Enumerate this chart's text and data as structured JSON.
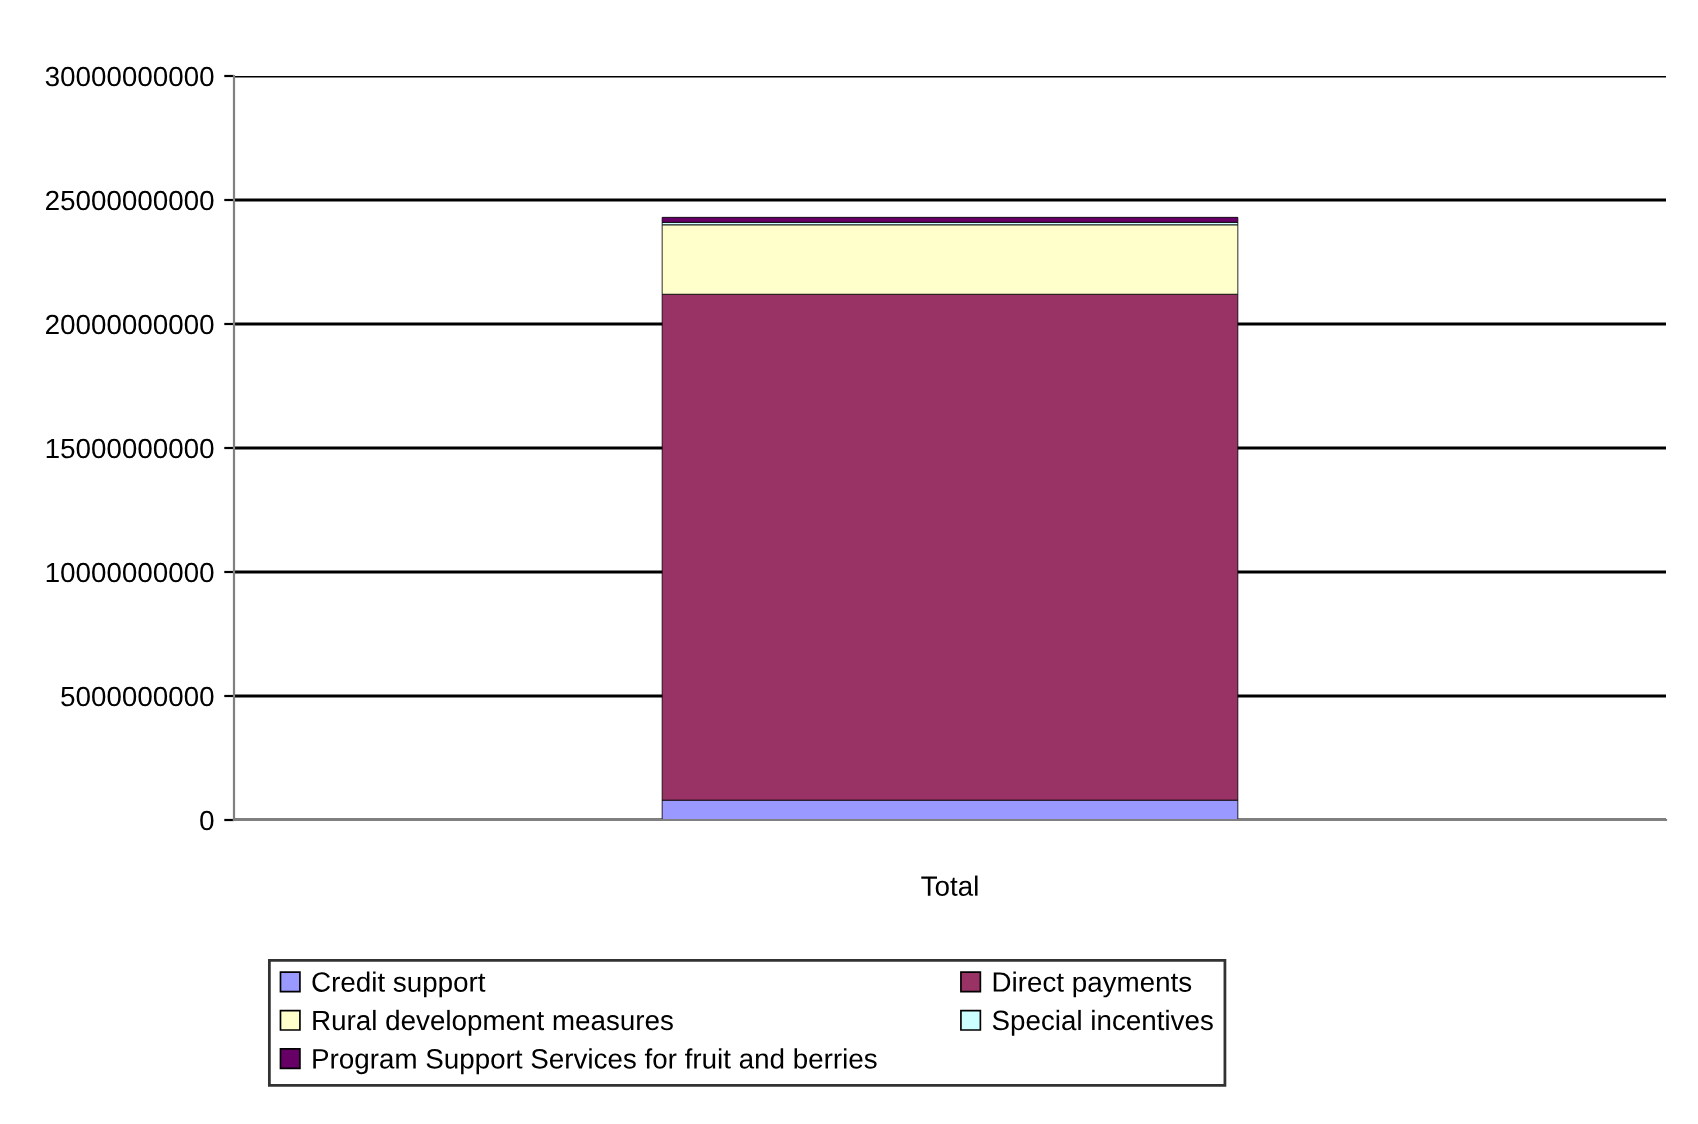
{
  "chart_data": {
    "type": "bar",
    "stacked": true,
    "categories": [
      "Total"
    ],
    "series": [
      {
        "name": "Credit support",
        "color": "#9999ff",
        "values": [
          800000000
        ]
      },
      {
        "name": "Direct payments",
        "color": "#993366",
        "values": [
          20400000000
        ]
      },
      {
        "name": "Rural development measures",
        "color": "#ffffcc",
        "values": [
          2800000000
        ]
      },
      {
        "name": "Special incentives",
        "color": "#ccffff",
        "values": [
          100000000
        ]
      },
      {
        "name": "Program Support Services for fruit and berries",
        "color": "#660066",
        "values": [
          200000000
        ]
      }
    ],
    "ylim": [
      0,
      30000000000
    ],
    "yticks": [
      0,
      5000000000,
      10000000000,
      15000000000,
      20000000000,
      25000000000,
      30000000000
    ],
    "grid": "y",
    "legend": "bottom"
  }
}
